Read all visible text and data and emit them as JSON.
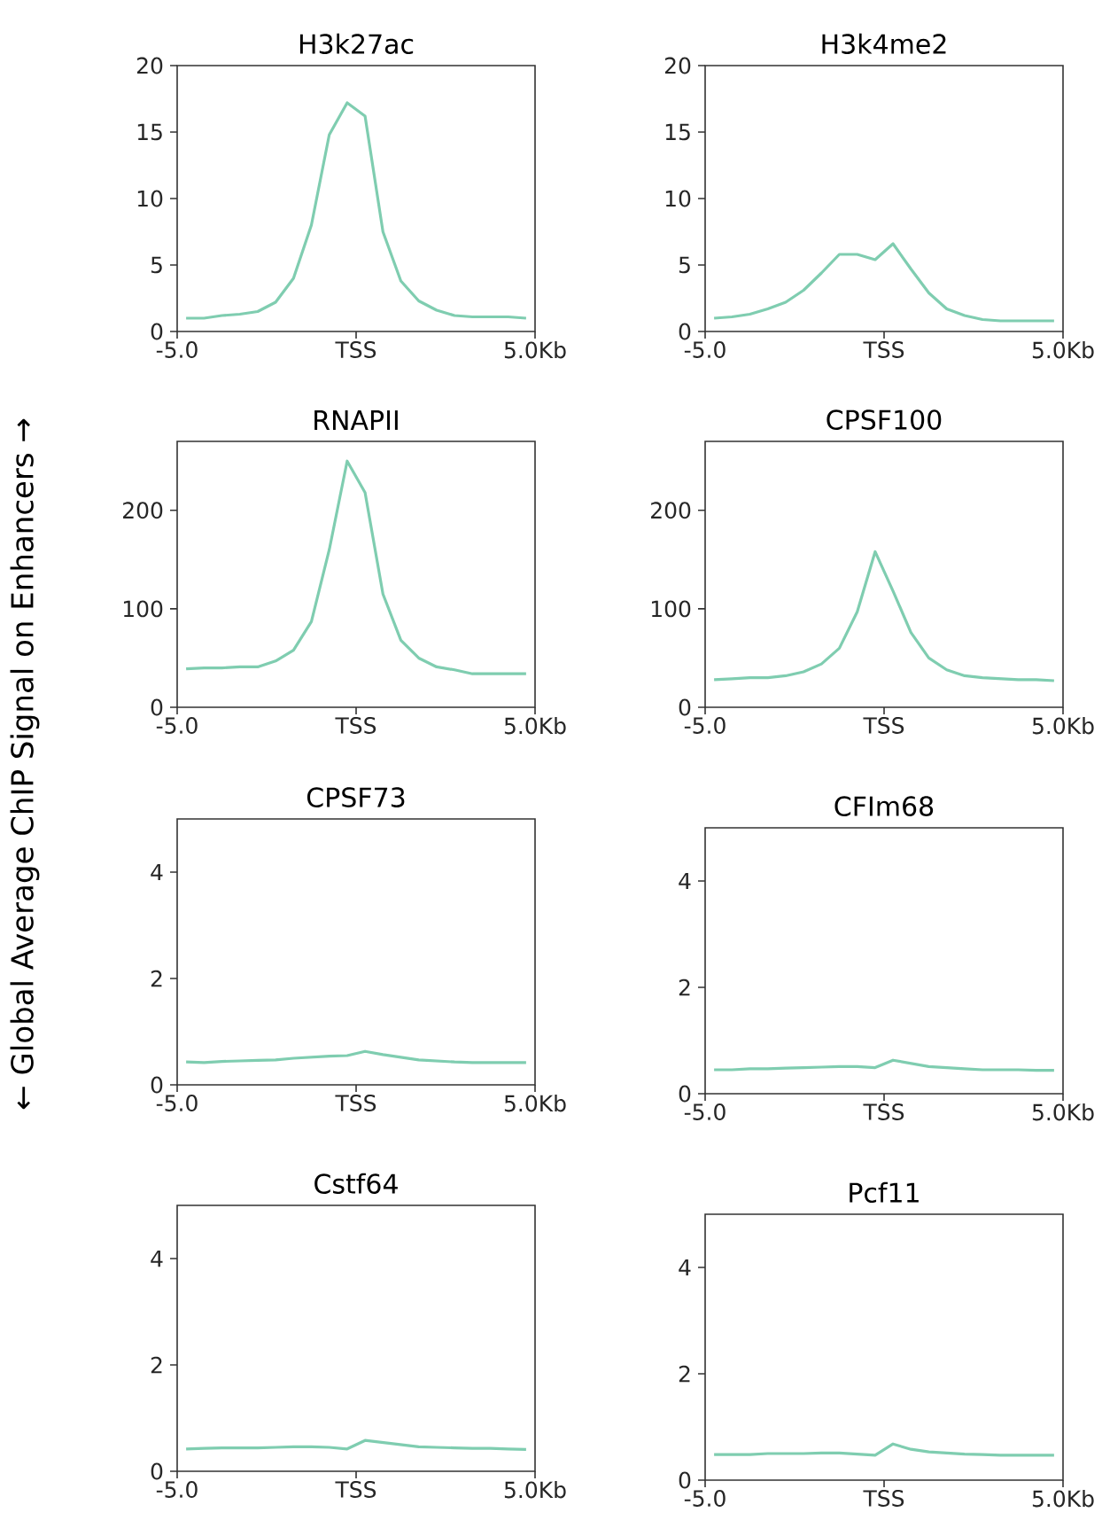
{
  "chart_data": [
    {
      "type": "line",
      "title": "H3k27ac",
      "x": [
        -4.75,
        -4.25,
        -3.75,
        -3.25,
        -2.75,
        -2.25,
        -1.75,
        -1.25,
        -0.75,
        -0.25,
        0.25,
        0.75,
        1.25,
        1.75,
        2.25,
        2.75,
        3.25,
        3.75,
        4.25,
        4.75
      ],
      "values": [
        1.0,
        1.0,
        1.2,
        1.3,
        1.5,
        2.2,
        4.0,
        8.0,
        14.8,
        17.2,
        16.2,
        7.5,
        3.8,
        2.3,
        1.6,
        1.2,
        1.1,
        1.1,
        1.1,
        1.0
      ],
      "color": "#7fcdb0",
      "xlim": [
        -5,
        5
      ],
      "xticks": [
        {
          "value": -5,
          "label": "-5.0"
        },
        {
          "value": 0,
          "label": "TSS"
        },
        {
          "value": 5,
          "label": "5.0Kb"
        }
      ],
      "ylim": [
        0,
        20
      ],
      "yticks": [
        0,
        5,
        10,
        15,
        20
      ],
      "grid": false
    },
    {
      "type": "line",
      "title": "H3k4me2",
      "x": [
        -4.75,
        -4.25,
        -3.75,
        -3.25,
        -2.75,
        -2.25,
        -1.75,
        -1.25,
        -0.75,
        -0.25,
        0.25,
        0.75,
        1.25,
        1.75,
        2.25,
        2.75,
        3.25,
        3.75,
        4.25,
        4.75
      ],
      "values": [
        1.0,
        1.1,
        1.3,
        1.7,
        2.2,
        3.1,
        4.4,
        5.8,
        5.8,
        5.4,
        6.6,
        4.7,
        2.9,
        1.7,
        1.2,
        0.9,
        0.8,
        0.8,
        0.8,
        0.8
      ],
      "color": "#7fcdb0",
      "xlim": [
        -5,
        5
      ],
      "xticks": [
        {
          "value": -5,
          "label": "-5.0"
        },
        {
          "value": 0,
          "label": "TSS"
        },
        {
          "value": 5,
          "label": "5.0Kb"
        }
      ],
      "ylim": [
        0,
        20
      ],
      "yticks": [
        0,
        5,
        10,
        15,
        20
      ],
      "grid": false
    },
    {
      "type": "line",
      "title": "RNAPII",
      "ylabel": "← Global Average ChIP Signal on Enhancers →",
      "x": [
        -4.75,
        -4.25,
        -3.75,
        -3.25,
        -2.75,
        -2.25,
        -1.75,
        -1.25,
        -0.75,
        -0.25,
        0.25,
        0.75,
        1.25,
        1.75,
        2.25,
        2.75,
        3.25,
        3.75,
        4.25,
        4.75
      ],
      "values": [
        39,
        40,
        40,
        41,
        41,
        47,
        58,
        87,
        160,
        250,
        218,
        115,
        68,
        50,
        41,
        38,
        34,
        34,
        34,
        34
      ],
      "color": "#7fcdb0",
      "xlim": [
        -5,
        5
      ],
      "xticks": [
        {
          "value": -5,
          "label": "-5.0"
        },
        {
          "value": 0,
          "label": "TSS"
        },
        {
          "value": 5,
          "label": "5.0Kb"
        }
      ],
      "ylim": [
        0,
        270
      ],
      "yticks": [
        0,
        100,
        200
      ],
      "grid": false
    },
    {
      "type": "line",
      "title": "CPSF100",
      "x": [
        -4.75,
        -4.25,
        -3.75,
        -3.25,
        -2.75,
        -2.25,
        -1.75,
        -1.25,
        -0.75,
        -0.25,
        0.25,
        0.75,
        1.25,
        1.75,
        2.25,
        2.75,
        3.25,
        3.75,
        4.25,
        4.75
      ],
      "values": [
        28,
        29,
        30,
        30,
        32,
        36,
        44,
        60,
        97,
        158,
        118,
        76,
        50,
        38,
        32,
        30,
        29,
        28,
        28,
        27
      ],
      "color": "#7fcdb0",
      "xlim": [
        -5,
        5
      ],
      "xticks": [
        {
          "value": -5,
          "label": "-5.0"
        },
        {
          "value": 0,
          "label": "TSS"
        },
        {
          "value": 5,
          "label": "5.0Kb"
        }
      ],
      "ylim": [
        0,
        270
      ],
      "yticks": [
        0,
        100,
        200
      ],
      "grid": false
    },
    {
      "type": "line",
      "title": "CPSF73",
      "x": [
        -4.75,
        -4.25,
        -3.75,
        -3.25,
        -2.75,
        -2.25,
        -1.75,
        -1.25,
        -0.75,
        -0.25,
        0.25,
        0.75,
        1.25,
        1.75,
        2.25,
        2.75,
        3.25,
        3.75,
        4.25,
        4.75
      ],
      "values": [
        0.43,
        0.42,
        0.44,
        0.45,
        0.46,
        0.47,
        0.5,
        0.52,
        0.54,
        0.55,
        0.63,
        0.57,
        0.52,
        0.47,
        0.45,
        0.43,
        0.42,
        0.42,
        0.42,
        0.42
      ],
      "color": "#7fcdb0",
      "xlim": [
        -5,
        5
      ],
      "xticks": [
        {
          "value": -5,
          "label": "-5.0"
        },
        {
          "value": 0,
          "label": "TSS"
        },
        {
          "value": 5,
          "label": "5.0Kb"
        }
      ],
      "ylim": [
        0,
        5
      ],
      "yticks": [
        0,
        2,
        4
      ],
      "grid": false
    },
    {
      "type": "line",
      "title": "CFIm68",
      "x": [
        -4.75,
        -4.25,
        -3.75,
        -3.25,
        -2.75,
        -2.25,
        -1.75,
        -1.25,
        -0.75,
        -0.25,
        0.25,
        0.75,
        1.25,
        1.75,
        2.25,
        2.75,
        3.25,
        3.75,
        4.25,
        4.75
      ],
      "values": [
        0.45,
        0.45,
        0.47,
        0.47,
        0.48,
        0.49,
        0.5,
        0.51,
        0.51,
        0.49,
        0.63,
        0.57,
        0.51,
        0.49,
        0.47,
        0.45,
        0.45,
        0.45,
        0.44,
        0.44
      ],
      "color": "#7fcdb0",
      "xlim": [
        -5,
        5
      ],
      "xticks": [
        {
          "value": -5,
          "label": "-5.0"
        },
        {
          "value": 0,
          "label": "TSS"
        },
        {
          "value": 5,
          "label": "5.0Kb"
        }
      ],
      "ylim": [
        0,
        5
      ],
      "yticks": [
        0,
        2,
        4
      ],
      "grid": false
    },
    {
      "type": "line",
      "title": "Cstf64",
      "x": [
        -4.75,
        -4.25,
        -3.75,
        -3.25,
        -2.75,
        -2.25,
        -1.75,
        -1.25,
        -0.75,
        -0.25,
        0.25,
        0.75,
        1.25,
        1.75,
        2.25,
        2.75,
        3.25,
        3.75,
        4.25,
        4.75
      ],
      "values": [
        0.42,
        0.43,
        0.44,
        0.44,
        0.44,
        0.45,
        0.46,
        0.46,
        0.45,
        0.42,
        0.58,
        0.54,
        0.5,
        0.46,
        0.45,
        0.44,
        0.43,
        0.43,
        0.42,
        0.41
      ],
      "color": "#7fcdb0",
      "xlim": [
        -5,
        5
      ],
      "xticks": [
        {
          "value": -5,
          "label": "-5.0"
        },
        {
          "value": 0,
          "label": "TSS"
        },
        {
          "value": 5,
          "label": "5.0Kb"
        }
      ],
      "ylim": [
        0,
        5
      ],
      "yticks": [
        0,
        2,
        4
      ],
      "grid": false
    },
    {
      "type": "line",
      "title": "Pcf11",
      "x": [
        -4.75,
        -4.25,
        -3.75,
        -3.25,
        -2.75,
        -2.25,
        -1.75,
        -1.25,
        -0.75,
        -0.25,
        0.25,
        0.75,
        1.25,
        1.75,
        2.25,
        2.75,
        3.25,
        3.75,
        4.25,
        4.75
      ],
      "values": [
        0.48,
        0.48,
        0.48,
        0.5,
        0.5,
        0.5,
        0.51,
        0.51,
        0.49,
        0.47,
        0.68,
        0.58,
        0.53,
        0.51,
        0.49,
        0.48,
        0.47,
        0.47,
        0.47,
        0.47
      ],
      "color": "#7fcdb0",
      "xlim": [
        -5,
        5
      ],
      "xticks": [
        {
          "value": -5,
          "label": "-5.0"
        },
        {
          "value": 0,
          "label": "TSS"
        },
        {
          "value": 5,
          "label": "5.0Kb"
        }
      ],
      "ylim": [
        0,
        5
      ],
      "yticks": [
        0,
        2,
        4
      ],
      "grid": false
    }
  ]
}
